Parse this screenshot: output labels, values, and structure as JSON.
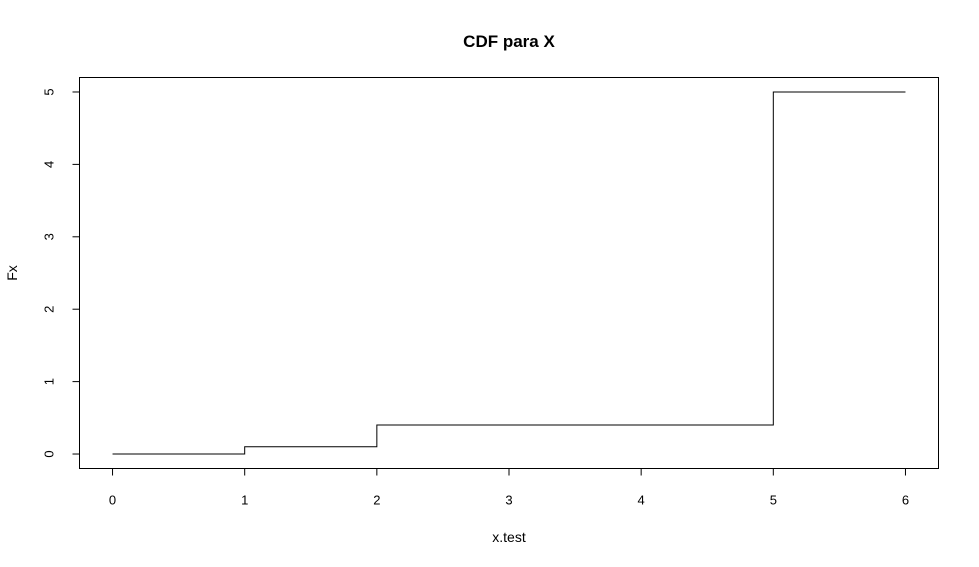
{
  "chart_data": {
    "type": "line",
    "step": "post",
    "title": "CDF para X",
    "xlabel": "x.test",
    "ylabel": "Fx",
    "xlim": [
      -0.25,
      6.25
    ],
    "ylim": [
      -0.2,
      5.2
    ],
    "xticks": [
      0,
      1,
      2,
      3,
      4,
      5,
      6
    ],
    "yticks": [
      0,
      1,
      2,
      3,
      4,
      5
    ],
    "grid": false,
    "color": "#000000",
    "x": [
      0,
      1,
      2,
      3,
      4,
      5,
      6
    ],
    "y": [
      0,
      0.1,
      0.4,
      0.4,
      0.4,
      5,
      5
    ]
  }
}
